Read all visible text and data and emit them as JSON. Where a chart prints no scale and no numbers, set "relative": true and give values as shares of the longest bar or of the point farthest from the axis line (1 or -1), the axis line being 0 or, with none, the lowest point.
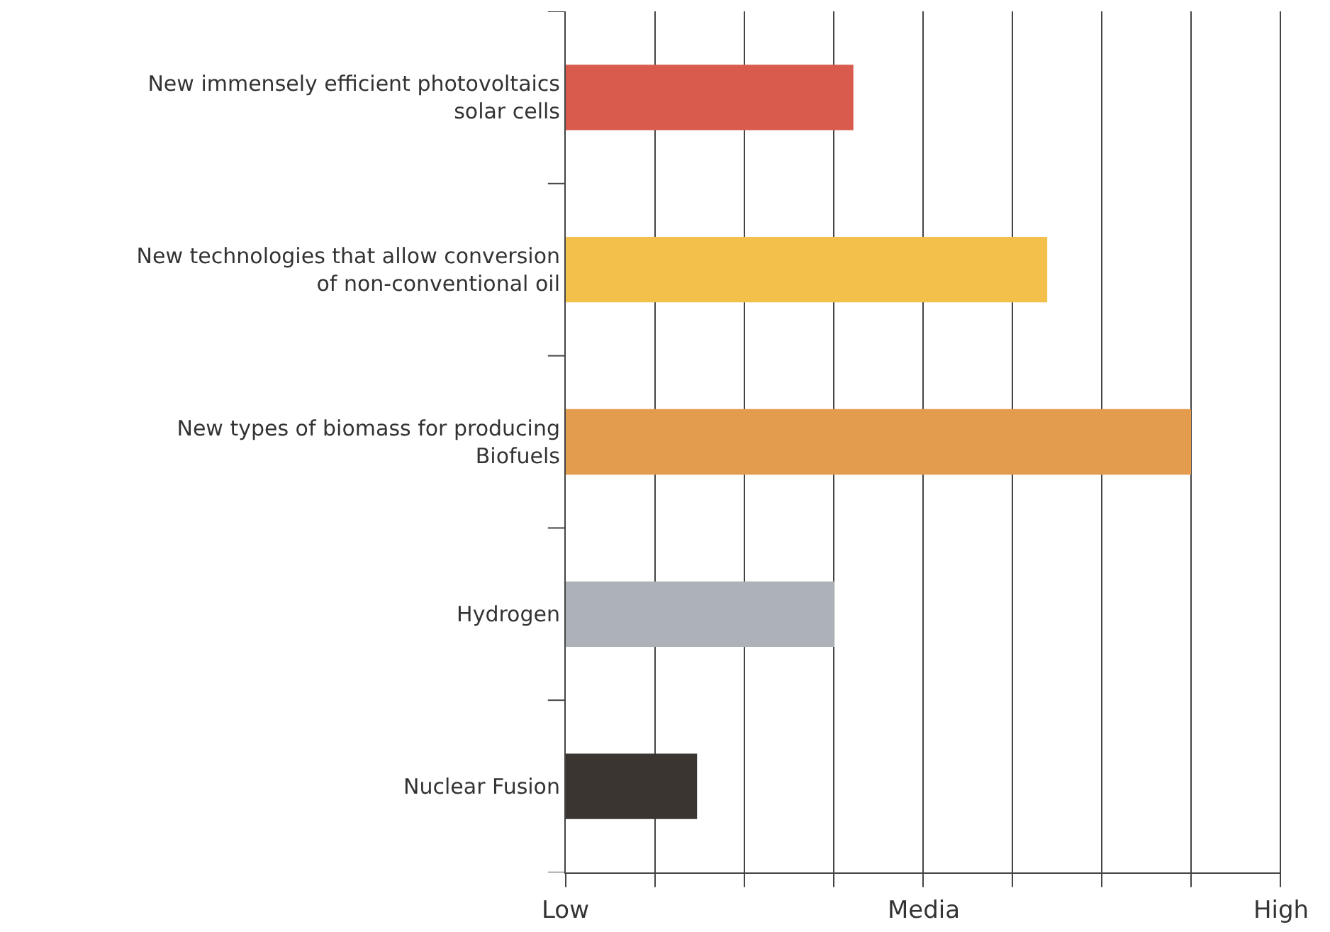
{
  "chart_data": {
    "type": "bar",
    "orientation": "horizontal",
    "relative": true,
    "categories": [
      "New immensely efficient photovoltaics solar cells",
      "New technologies that allow conversion of non-conventional oil",
      "New types of biomass for producing Biofuels",
      "Hydrogen",
      "Nuclear Fusion"
    ],
    "values": [
      0.46,
      0.77,
      1,
      0.43,
      0.21
    ],
    "colors": [
      "#d95b4e",
      "#f2c04b",
      "#e39b4e",
      "#adb1b8",
      "#3a3530"
    ],
    "annotations": [
      "Low",
      "Media",
      "High"
    ],
    "grid": "x"
  }
}
